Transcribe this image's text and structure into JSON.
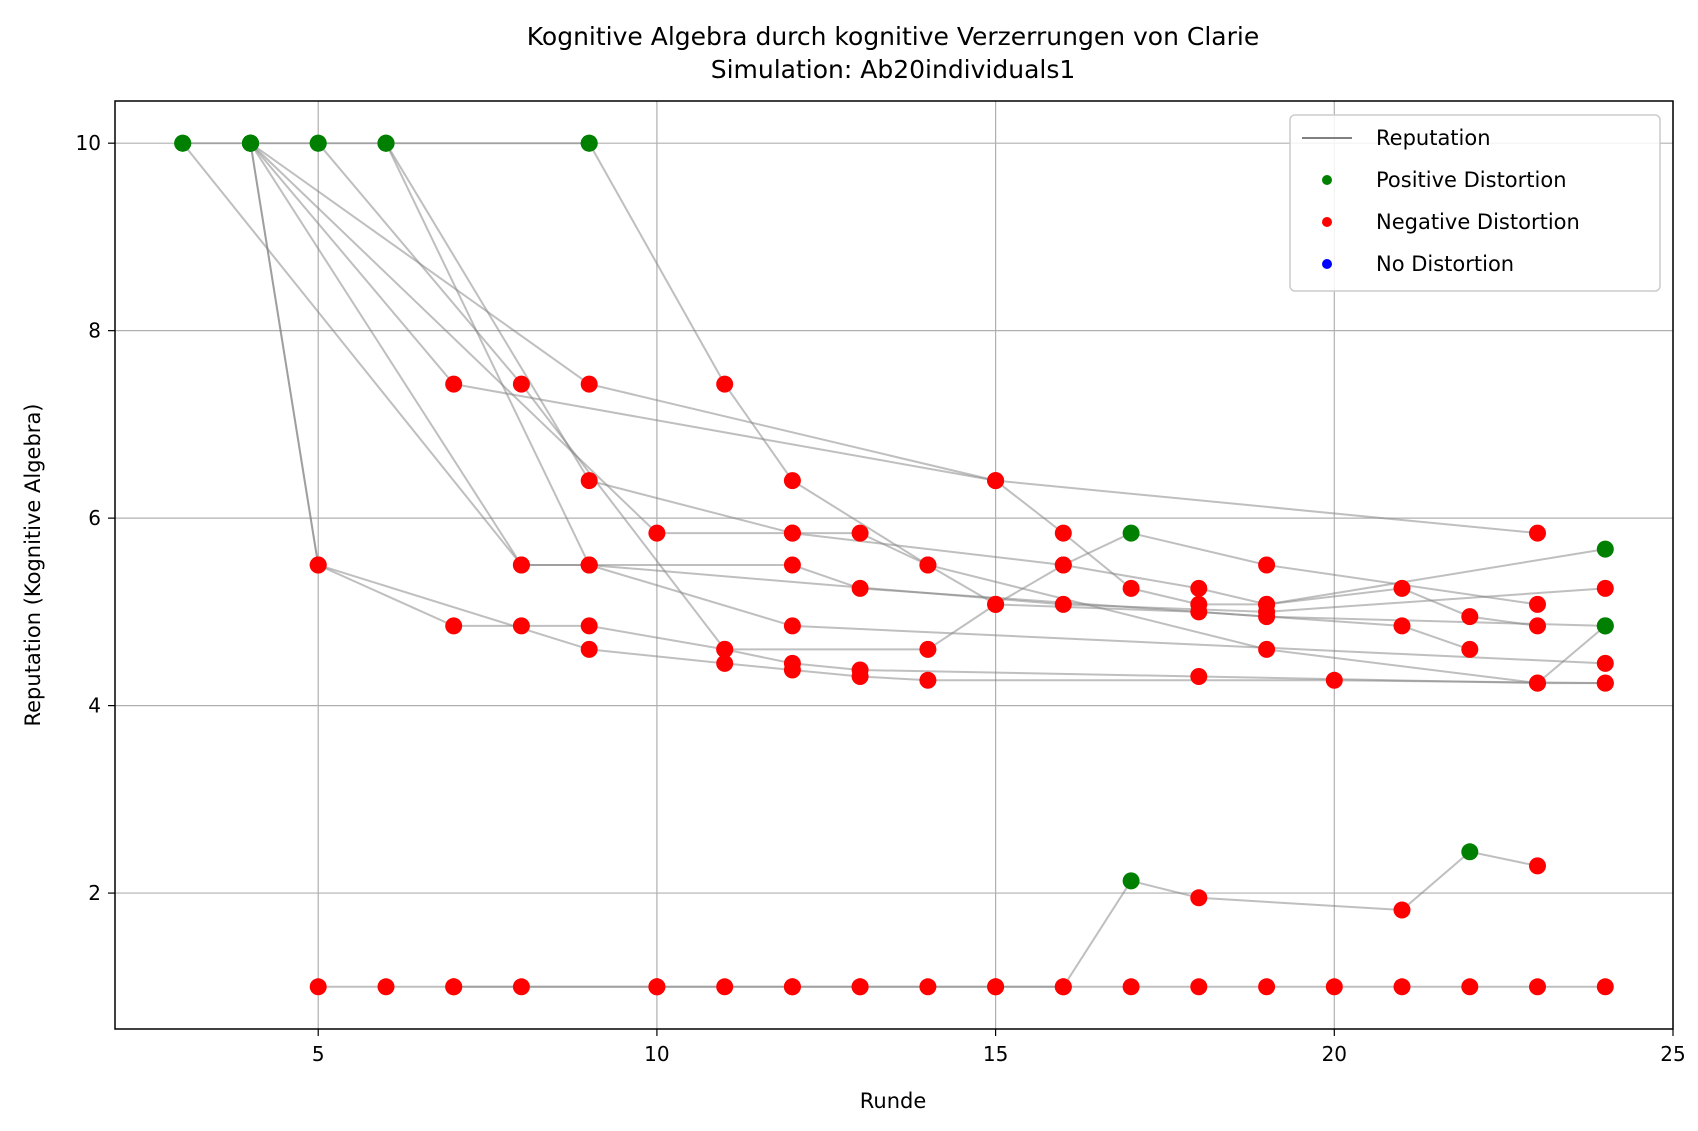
{
  "chart_data": {
    "type": "scatter",
    "title": "Kognitive Algebra durch kognitive Verzerrungen von Clarie",
    "subtitle": "Simulation: Ab20individuals1",
    "xlabel": "Runde",
    "ylabel": "Reputation (Kognitive Algebra)",
    "xlim": [
      2,
      25
    ],
    "ylim": [
      0.55,
      10.45
    ],
    "xticks": [
      5,
      10,
      15,
      20,
      25
    ],
    "yticks": [
      2,
      4,
      6,
      8,
      10
    ],
    "grid": true,
    "legend_position": "top-right",
    "legend": [
      {
        "label": "Reputation",
        "kind": "line",
        "color": "#808080"
      },
      {
        "label": "Positive Distortion",
        "kind": "marker",
        "color": "#008000"
      },
      {
        "label": "Negative Distortion",
        "kind": "marker",
        "color": "#ff0000"
      },
      {
        "label": "No Distortion",
        "kind": "marker",
        "color": "#0000ff"
      }
    ],
    "line_color": "#808080",
    "series": [
      {
        "points": [
          [
            3,
            10,
            "pos"
          ],
          [
            8,
            5.5,
            "neg"
          ],
          [
            9,
            5.5,
            "neg"
          ],
          [
            12,
            5.5,
            "neg"
          ],
          [
            13,
            5.25,
            "neg"
          ],
          [
            19,
            4.95,
            "neg"
          ],
          [
            24,
            4.85,
            "pos"
          ]
        ]
      },
      {
        "points": [
          [
            4,
            10,
            "pos"
          ],
          [
            5,
            5.5,
            "neg"
          ],
          [
            7,
            4.85,
            "neg"
          ],
          [
            8,
            4.85,
            "neg"
          ],
          [
            9,
            4.85,
            "neg"
          ],
          [
            11,
            4.6,
            "neg"
          ],
          [
            14,
            4.6,
            "neg"
          ],
          [
            15,
            5.08,
            "neg"
          ],
          [
            16,
            5.5,
            "neg"
          ],
          [
            17,
            5.84,
            "pos"
          ],
          [
            19,
            5.5,
            "neg"
          ],
          [
            23,
            5.08,
            "neg"
          ]
        ]
      },
      {
        "points": [
          [
            4,
            10,
            "pos"
          ],
          [
            5,
            5.5,
            "neg"
          ],
          [
            9,
            4.6,
            "neg"
          ],
          [
            11,
            4.45,
            "neg"
          ],
          [
            12,
            4.38,
            "neg"
          ],
          [
            13,
            4.31,
            "neg"
          ],
          [
            14,
            4.27,
            "neg"
          ],
          [
            20,
            4.27,
            "neg"
          ],
          [
            24,
            4.24,
            "neg"
          ]
        ]
      },
      {
        "points": [
          [
            4,
            10,
            "pos"
          ],
          [
            7,
            7.43,
            "neg"
          ],
          [
            15,
            6.4,
            "neg"
          ],
          [
            23,
            5.84,
            "neg"
          ]
        ]
      },
      {
        "points": [
          [
            4,
            10,
            "pos"
          ],
          [
            8,
            5.5,
            "neg"
          ],
          [
            9,
            5.5,
            "neg"
          ],
          [
            12,
            4.85,
            "neg"
          ],
          [
            24,
            4.45,
            "neg"
          ]
        ]
      },
      {
        "points": [
          [
            4,
            10,
            "pos"
          ],
          [
            9,
            7.43,
            "neg"
          ],
          [
            15,
            6.4,
            "neg"
          ],
          [
            16,
            5.84,
            "neg"
          ],
          [
            17,
            5.25,
            "neg"
          ],
          [
            18,
            5.08,
            "neg"
          ],
          [
            19,
            5.08,
            "neg"
          ],
          [
            24,
            5.67,
            "pos"
          ]
        ]
      },
      {
        "points": [
          [
            4,
            10,
            "pos"
          ],
          [
            10,
            5.84,
            "neg"
          ],
          [
            12,
            5.84,
            "neg"
          ],
          [
            13,
            5.84,
            "neg"
          ],
          [
            14,
            5.5,
            "neg"
          ],
          [
            15,
            5.08,
            "neg"
          ],
          [
            18,
            5.0,
            "neg"
          ],
          [
            21,
            4.85,
            "neg"
          ],
          [
            22,
            4.6,
            "neg"
          ]
        ]
      },
      {
        "points": [
          [
            5,
            10,
            "pos"
          ],
          [
            8,
            7.43,
            "neg"
          ],
          [
            11,
            4.6,
            "neg"
          ],
          [
            12,
            4.45,
            "neg"
          ],
          [
            13,
            4.38,
            "neg"
          ],
          [
            18,
            4.31,
            "neg"
          ],
          [
            23,
            4.24,
            "neg"
          ],
          [
            24,
            4.24,
            "neg"
          ]
        ]
      },
      {
        "points": [
          [
            6,
            10,
            "pos"
          ],
          [
            9,
            6.4,
            "neg"
          ],
          [
            12,
            5.84,
            "neg"
          ],
          [
            16,
            5.5,
            "neg"
          ],
          [
            18,
            5.25,
            "neg"
          ],
          [
            19,
            5.08,
            "neg"
          ],
          [
            21,
            5.25,
            "neg"
          ],
          [
            22,
            4.95,
            "neg"
          ],
          [
            23,
            4.85,
            "neg"
          ]
        ]
      },
      {
        "points": [
          [
            6,
            10,
            "pos"
          ],
          [
            9,
            5.5,
            "neg"
          ],
          [
            16,
            5.08,
            "neg"
          ],
          [
            19,
            5.0,
            "neg"
          ],
          [
            24,
            5.25,
            "neg"
          ]
        ]
      },
      {
        "points": [
          [
            9,
            10,
            "pos"
          ],
          [
            11,
            7.43,
            "neg"
          ],
          [
            12,
            6.4,
            "neg"
          ],
          [
            14,
            5.5,
            "neg"
          ],
          [
            19,
            4.6,
            "neg"
          ],
          [
            23,
            4.24,
            "neg"
          ],
          [
            24,
            4.85,
            "pos"
          ]
        ]
      },
      {
        "points": [
          [
            3,
            10,
            "pos"
          ],
          [
            4,
            10,
            "pos"
          ],
          [
            5,
            10,
            "pos"
          ],
          [
            6,
            10,
            "pos"
          ],
          [
            9,
            10,
            "pos"
          ]
        ]
      },
      {
        "points": [
          [
            5,
            1,
            "neg"
          ],
          [
            6,
            1,
            "neg"
          ],
          [
            7,
            1,
            "neg"
          ],
          [
            8,
            1,
            "neg"
          ],
          [
            10,
            1,
            "neg"
          ],
          [
            11,
            1,
            "neg"
          ],
          [
            12,
            1,
            "neg"
          ],
          [
            13,
            1,
            "neg"
          ],
          [
            14,
            1,
            "neg"
          ],
          [
            15,
            1,
            "neg"
          ],
          [
            16,
            1,
            "neg"
          ],
          [
            17,
            1,
            "neg"
          ],
          [
            18,
            1,
            "neg"
          ],
          [
            19,
            1,
            "neg"
          ],
          [
            20,
            1,
            "neg"
          ],
          [
            21,
            1,
            "neg"
          ],
          [
            22,
            1,
            "neg"
          ],
          [
            23,
            1,
            "neg"
          ],
          [
            24,
            1,
            "neg"
          ]
        ]
      },
      {
        "points": [
          [
            7,
            1,
            "neg"
          ],
          [
            10,
            1,
            "neg"
          ],
          [
            12,
            1,
            "neg"
          ],
          [
            13,
            1,
            "neg"
          ],
          [
            15,
            1,
            "neg"
          ],
          [
            16,
            1,
            "neg"
          ],
          [
            17,
            2.13,
            "pos"
          ],
          [
            18,
            1.95,
            "neg"
          ],
          [
            21,
            1.82,
            "neg"
          ],
          [
            22,
            2.44,
            "pos"
          ],
          [
            23,
            2.29,
            "neg"
          ]
        ]
      }
    ]
  }
}
